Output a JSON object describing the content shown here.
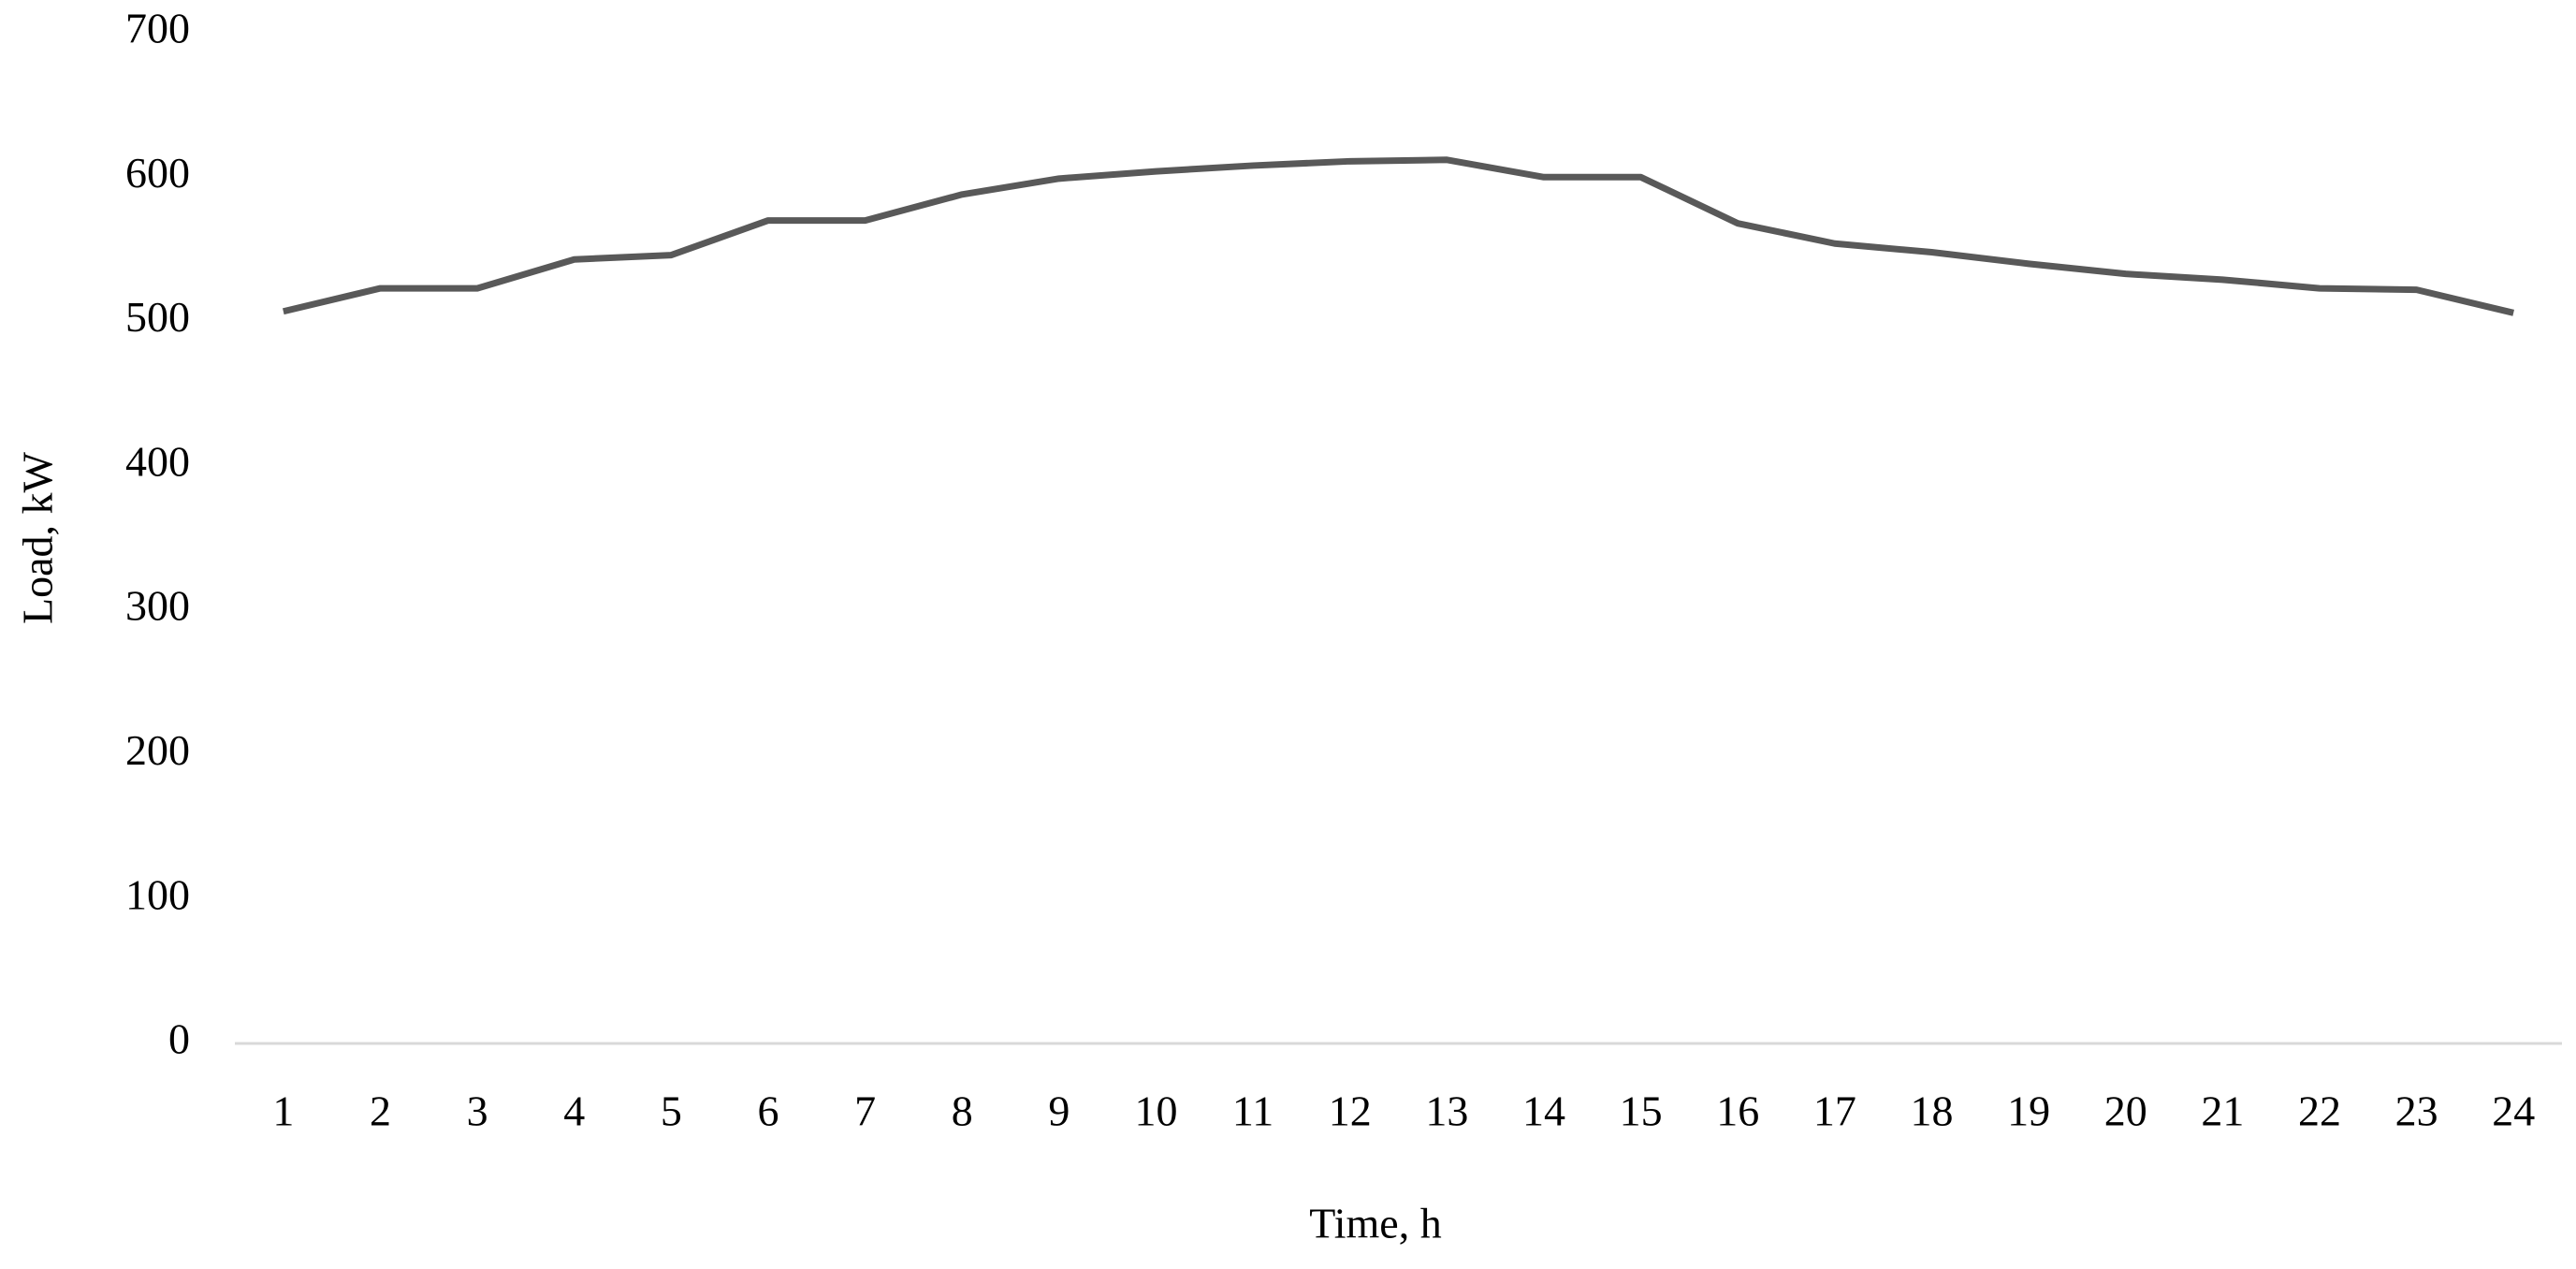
{
  "chart_data": {
    "type": "line",
    "x_label": "Time, h",
    "y_label": "Load, kW",
    "categories": [
      "1",
      "2",
      "3",
      "4",
      "5",
      "6",
      "7",
      "8",
      "9",
      "10",
      "11",
      "12",
      "13",
      "14",
      "15",
      "16",
      "17",
      "18",
      "19",
      "20",
      "21",
      "22",
      "23",
      "24"
    ],
    "series": [
      {
        "name": "Load",
        "color": "#595959",
        "values": [
          507,
          523,
          523,
          543,
          546,
          570,
          570,
          588,
          599,
          604,
          608,
          611,
          612,
          600,
          600,
          568,
          554,
          548,
          540,
          533,
          529,
          523,
          522,
          506
        ]
      }
    ],
    "ylim": [
      0,
      700
    ],
    "yticks": [
      0,
      100,
      200,
      300,
      400,
      500,
      600,
      700
    ],
    "grid": false
  }
}
